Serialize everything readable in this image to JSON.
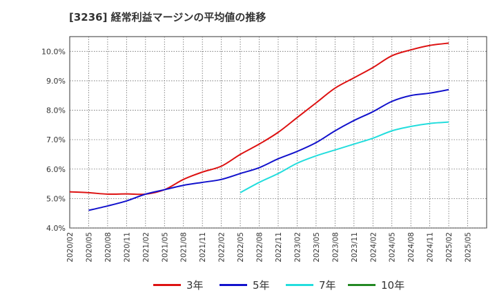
{
  "title": "[3236]  経常利益マージンの平均値の推移",
  "chart_data": {
    "type": "line",
    "ylim": [
      4.0,
      10.5
    ],
    "y_ticks": [
      "4.0%",
      "5.0%",
      "6.0%",
      "7.0%",
      "8.0%",
      "9.0%",
      "10.0%"
    ],
    "y_tick_values": [
      4,
      5,
      6,
      7,
      8,
      9,
      10
    ],
    "x_ticks": [
      "2020/02",
      "2020/05",
      "2020/08",
      "2020/11",
      "2021/02",
      "2021/05",
      "2021/08",
      "2021/11",
      "2022/02",
      "2022/05",
      "2022/08",
      "2022/11",
      "2023/02",
      "2023/05",
      "2023/08",
      "2023/11",
      "2024/02",
      "2024/05",
      "2024/08",
      "2024/11",
      "2025/02",
      "2025/05"
    ],
    "grid": true,
    "legend_position": "bottom",
    "series": [
      {
        "name": "3年",
        "color": "#dd1111",
        "x": [
          "2020/02",
          "2020/05",
          "2020/08",
          "2020/11",
          "2021/02",
          "2021/05",
          "2021/08",
          "2021/11",
          "2022/02",
          "2022/05",
          "2022/08",
          "2022/11",
          "2023/02",
          "2023/05",
          "2023/08",
          "2023/11",
          "2024/02",
          "2024/05",
          "2024/08",
          "2024/11",
          "2025/02"
        ],
        "values": [
          5.23,
          5.2,
          5.15,
          5.16,
          5.15,
          5.3,
          5.65,
          5.9,
          6.1,
          6.5,
          6.85,
          7.25,
          7.75,
          8.25,
          8.75,
          9.1,
          9.45,
          9.85,
          10.05,
          10.2,
          10.28
        ]
      },
      {
        "name": "5年",
        "color": "#1111cc",
        "x": [
          "2020/05",
          "2020/08",
          "2020/11",
          "2021/02",
          "2021/05",
          "2021/08",
          "2021/11",
          "2022/02",
          "2022/05",
          "2022/08",
          "2022/11",
          "2023/02",
          "2023/05",
          "2023/08",
          "2023/11",
          "2024/02",
          "2024/05",
          "2024/08",
          "2024/11",
          "2025/02"
        ],
        "values": [
          4.6,
          4.75,
          4.92,
          5.15,
          5.3,
          5.45,
          5.55,
          5.65,
          5.85,
          6.05,
          6.35,
          6.6,
          6.9,
          7.3,
          7.65,
          7.95,
          8.3,
          8.5,
          8.58,
          8.7
        ]
      },
      {
        "name": "7年",
        "color": "#22dddd",
        "x": [
          "2022/05",
          "2022/08",
          "2022/11",
          "2023/02",
          "2023/05",
          "2023/08",
          "2023/11",
          "2024/02",
          "2024/05",
          "2024/08",
          "2024/11",
          "2025/02"
        ],
        "values": [
          5.2,
          5.55,
          5.85,
          6.2,
          6.45,
          6.65,
          6.85,
          7.05,
          7.3,
          7.45,
          7.55,
          7.6
        ]
      },
      {
        "name": "10年",
        "color": "#228822",
        "x": [],
        "values": []
      }
    ]
  }
}
